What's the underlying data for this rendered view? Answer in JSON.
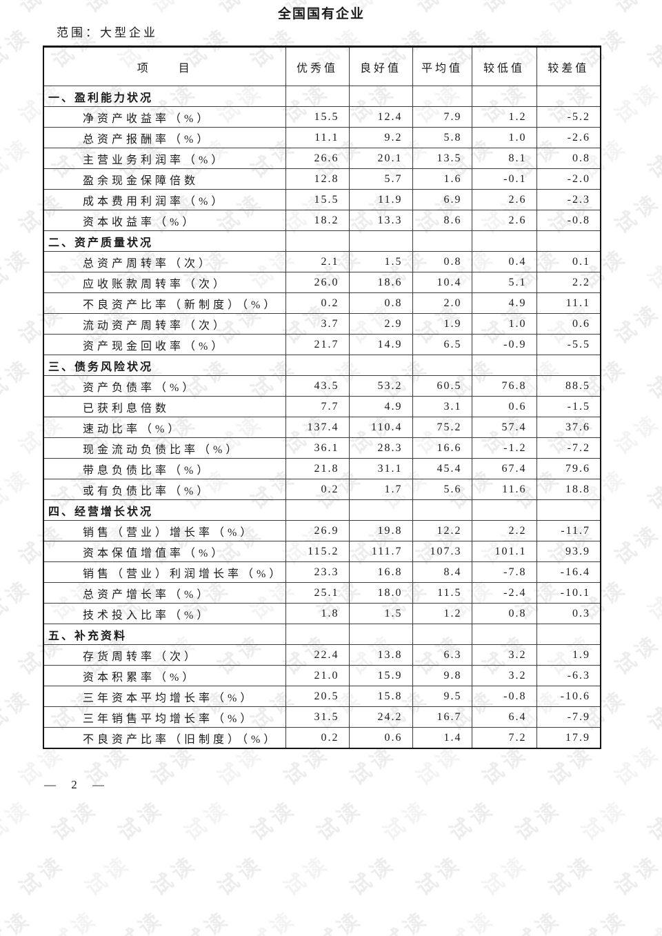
{
  "page": {
    "title": "全国国有企业",
    "scope_label": "范围：大型企业",
    "page_number": "— 2 —",
    "watermark_text": "试读"
  },
  "table": {
    "columns": [
      "项　　目",
      "优秀值",
      "良好值",
      "平均值",
      "较低值",
      "较差值"
    ],
    "sections": [
      {
        "title": "一、盈利能力状况",
        "rows": [
          {
            "label": "净资产收益率（%）",
            "values": [
              "15.5",
              "12.4",
              "7.9",
              "1.2",
              "-5.2"
            ]
          },
          {
            "label": "总资产报酬率（%）",
            "values": [
              "11.1",
              "9.2",
              "5.8",
              "1.0",
              "-2.6"
            ]
          },
          {
            "label": "主营业务利润率（%）",
            "values": [
              "26.6",
              "20.1",
              "13.5",
              "8.1",
              "0.8"
            ]
          },
          {
            "label": "盈余现金保障倍数",
            "values": [
              "12.8",
              "5.7",
              "1.6",
              "-0.1",
              "-2.0"
            ]
          },
          {
            "label": "成本费用利润率（%）",
            "values": [
              "15.5",
              "11.9",
              "6.9",
              "2.6",
              "-2.3"
            ]
          },
          {
            "label": "资本收益率（%）",
            "values": [
              "18.2",
              "13.3",
              "8.6",
              "2.6",
              "-0.8"
            ]
          }
        ]
      },
      {
        "title": "二、资产质量状况",
        "rows": [
          {
            "label": "总资产周转率（次）",
            "values": [
              "2.1",
              "1.5",
              "0.8",
              "0.4",
              "0.1"
            ]
          },
          {
            "label": "应收账款周转率（次）",
            "values": [
              "26.0",
              "18.6",
              "10.4",
              "5.1",
              "2.2"
            ]
          },
          {
            "label": "不良资产比率（新制度）（%）",
            "values": [
              "0.2",
              "0.8",
              "2.0",
              "4.9",
              "11.1"
            ]
          },
          {
            "label": "流动资产周转率（次）",
            "values": [
              "3.7",
              "2.9",
              "1.9",
              "1.0",
              "0.6"
            ]
          },
          {
            "label": "资产现金回收率（%）",
            "values": [
              "21.7",
              "14.9",
              "6.5",
              "-0.9",
              "-5.5"
            ]
          }
        ]
      },
      {
        "title": "三、债务风险状况",
        "rows": [
          {
            "label": "资产负债率（%）",
            "values": [
              "43.5",
              "53.2",
              "60.5",
              "76.8",
              "88.5"
            ]
          },
          {
            "label": "已获利息倍数",
            "values": [
              "7.7",
              "4.9",
              "3.1",
              "0.6",
              "-1.5"
            ]
          },
          {
            "label": "速动比率（%）",
            "values": [
              "137.4",
              "110.4",
              "75.2",
              "57.4",
              "37.6"
            ]
          },
          {
            "label": "现金流动负债比率（%）",
            "values": [
              "36.1",
              "28.3",
              "16.6",
              "-1.2",
              "-7.2"
            ]
          },
          {
            "label": "带息负债比率（%）",
            "values": [
              "21.8",
              "31.1",
              "45.4",
              "67.4",
              "79.6"
            ]
          },
          {
            "label": "或有负债比率（%）",
            "values": [
              "0.2",
              "1.7",
              "5.6",
              "11.6",
              "18.8"
            ]
          }
        ]
      },
      {
        "title": "四、经营增长状况",
        "rows": [
          {
            "label": "销售（营业）增长率（%）",
            "values": [
              "26.9",
              "19.8",
              "12.2",
              "2.2",
              "-11.7"
            ]
          },
          {
            "label": "资本保值增值率（%）",
            "values": [
              "115.2",
              "111.7",
              "107.3",
              "101.1",
              "93.9"
            ]
          },
          {
            "label": "销售（营业）利润增长率（%）",
            "values": [
              "23.3",
              "16.8",
              "8.4",
              "-7.8",
              "-16.4"
            ]
          },
          {
            "label": "总资产增长率（%）",
            "values": [
              "25.1",
              "18.0",
              "11.5",
              "-2.4",
              "-10.1"
            ]
          },
          {
            "label": "技术投入比率（%）",
            "values": [
              "1.8",
              "1.5",
              "1.2",
              "0.8",
              "0.3"
            ]
          }
        ]
      },
      {
        "title": "五、补充资料",
        "rows": [
          {
            "label": "存货周转率（次）",
            "values": [
              "22.4",
              "13.8",
              "6.3",
              "3.2",
              "1.9"
            ]
          },
          {
            "label": "资本积累率（%）",
            "values": [
              "21.0",
              "15.9",
              "9.8",
              "3.2",
              "-6.3"
            ]
          },
          {
            "label": "三年资本平均增长率（%）",
            "values": [
              "20.5",
              "15.8",
              "9.5",
              "-0.8",
              "-10.6"
            ]
          },
          {
            "label": "三年销售平均增长率（%）",
            "values": [
              "31.5",
              "24.2",
              "16.7",
              "6.4",
              "-7.9"
            ]
          },
          {
            "label": "不良资产比率（旧制度）（%）",
            "values": [
              "0.2",
              "0.6",
              "1.4",
              "7.2",
              "17.9"
            ]
          }
        ]
      }
    ]
  }
}
